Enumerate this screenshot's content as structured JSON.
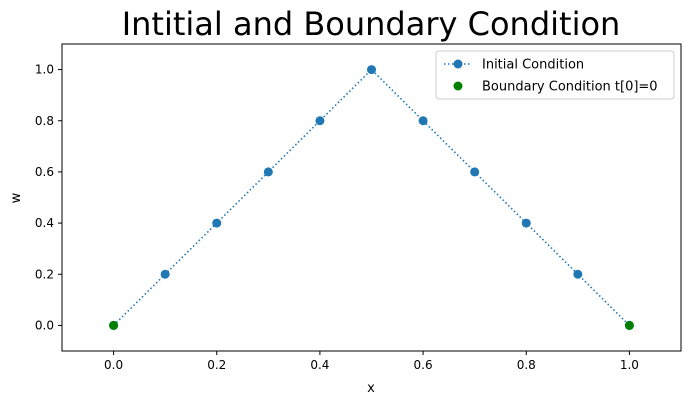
{
  "chart_data": {
    "type": "line",
    "title": "Intitial and Boundary Condition",
    "xlabel": "x",
    "ylabel": "w",
    "xlim": [
      -0.1,
      1.1
    ],
    "ylim": [
      -0.1,
      1.1
    ],
    "xticks": [
      "0.0",
      "0.2",
      "0.4",
      "0.6",
      "0.8",
      "1.0"
    ],
    "yticks": [
      "0.0",
      "0.2",
      "0.4",
      "0.6",
      "0.8",
      "1.0"
    ],
    "grid": false,
    "legend_position": "top-right",
    "series": [
      {
        "name": "Initial Condition",
        "color": "#1f77b4",
        "line_style": "dotted",
        "marker": "circle",
        "x": [
          0.0,
          0.1,
          0.2,
          0.3,
          0.4,
          0.5,
          0.6,
          0.7,
          0.8,
          0.9,
          1.0
        ],
        "y": [
          0.0,
          0.2,
          0.4,
          0.6,
          0.8,
          1.0,
          0.8,
          0.6,
          0.4,
          0.2,
          0.0
        ]
      },
      {
        "name": "Boundary Condition t[0]=0",
        "color": "#008000",
        "line_style": "none",
        "marker": "circle",
        "x": [
          0.0,
          1.0
        ],
        "y": [
          0.0,
          0.0
        ]
      }
    ]
  }
}
